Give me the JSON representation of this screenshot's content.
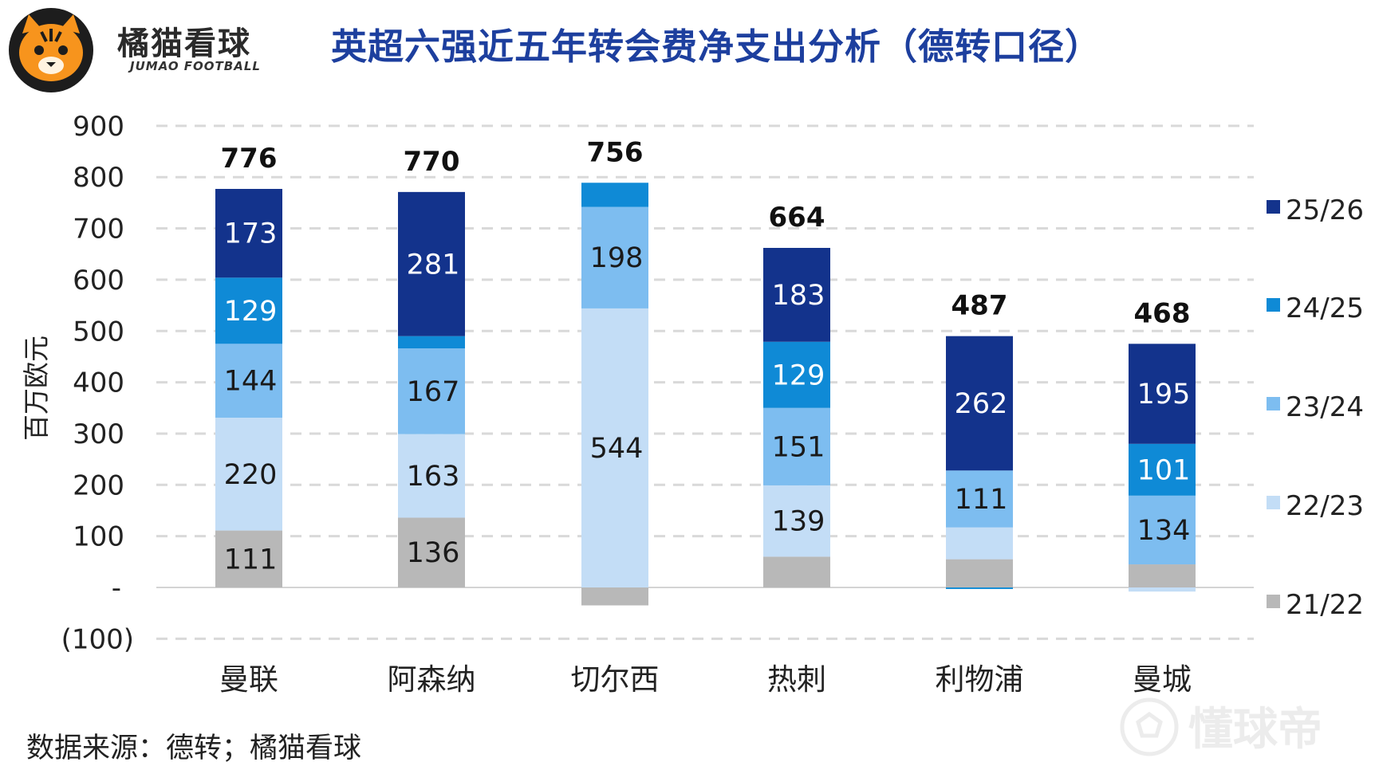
{
  "brand": {
    "name": "橘猫看球",
    "subtitle": "JUMAO FOOTBALL"
  },
  "title": "英超六强近五年转会费净支出分析（德转口径）",
  "footer": {
    "source": "数据来源：德转；橘猫看球"
  },
  "watermark": {
    "text": "懂球帝"
  },
  "colors": {
    "title": "#1d3f9e",
    "s2526": "#13338c",
    "s2425": "#0f8ad6",
    "s2324": "#7dbdf0",
    "s2223": "#c3ddf6",
    "s2122": "#b8b8b8"
  },
  "chart_data": {
    "type": "bar",
    "stacked": true,
    "ylabel": "百万欧元",
    "ylim": [
      -100,
      900
    ],
    "yticks": [
      -100,
      0,
      100,
      200,
      300,
      400,
      500,
      600,
      700,
      800,
      900
    ],
    "ytick_labels": [
      "(100)",
      "-",
      "100",
      "200",
      "300",
      "400",
      "500",
      "600",
      "700",
      "800",
      "900"
    ],
    "grid": true,
    "legend_position": "right",
    "categories": [
      "曼联",
      "阿森纳",
      "切尔西",
      "热刺",
      "利物浦",
      "曼城"
    ],
    "totals": [
      776,
      770,
      756,
      664,
      487,
      468
    ],
    "series": [
      {
        "name": "21/22",
        "color": "#b8b8b8",
        "values": [
          111,
          136,
          -35,
          60,
          55,
          45
        ],
        "labels": [
          "111",
          "136",
          "",
          "",
          "",
          ""
        ]
      },
      {
        "name": "22/23",
        "color": "#c3ddf6",
        "values": [
          220,
          163,
          544,
          139,
          62,
          -8
        ],
        "labels": [
          "220",
          "163",
          "544",
          "139",
          "",
          ""
        ]
      },
      {
        "name": "23/24",
        "color": "#7dbdf0",
        "values": [
          144,
          167,
          198,
          151,
          111,
          134
        ],
        "labels": [
          "144",
          "167",
          "198",
          "151",
          "111",
          "134"
        ]
      },
      {
        "name": "24/25",
        "color": "#0f8ad6",
        "values": [
          129,
          24,
          47,
          129,
          -3,
          101
        ],
        "labels": [
          "129",
          "",
          "",
          "129",
          "",
          "101"
        ]
      },
      {
        "name": "25/26",
        "color": "#13338c",
        "values": [
          173,
          281,
          0,
          183,
          262,
          195
        ],
        "labels": [
          "173",
          "281",
          "",
          "183",
          "262",
          "195"
        ]
      }
    ],
    "legend_order": [
      "25/26",
      "24/25",
      "23/24",
      "22/23",
      "21/22"
    ]
  }
}
